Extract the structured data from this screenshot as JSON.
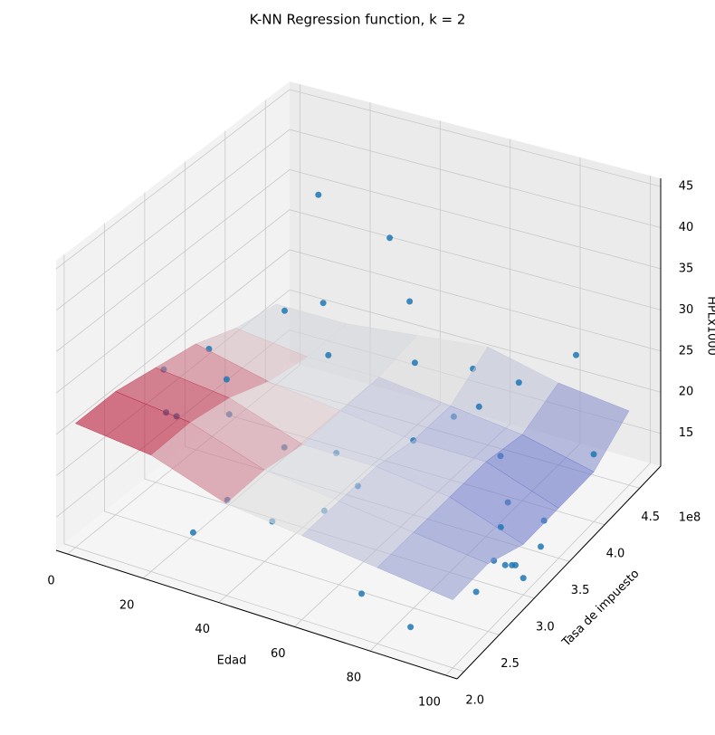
{
  "chart_data": {
    "type": "scatter3d",
    "title": "K-NN Regression function, k = 2",
    "xlabel": "Edad",
    "ylabel": "Tasa de impuesto",
    "zlabel": "HPLx1000",
    "y_offset_label": "1e8",
    "xlim": [
      -3,
      103
    ],
    "ylim": [
      1.9,
      4.8
    ],
    "zlim": [
      11,
      46
    ],
    "xticks": [
      0,
      20,
      40,
      60,
      80,
      100
    ],
    "yticks": [
      {
        "value": 2,
        "label": "2.0"
      },
      {
        "value": 2.5,
        "label": "2.5"
      },
      {
        "value": 3,
        "label": "3.0"
      },
      {
        "value": 3.5,
        "label": "3.5"
      },
      {
        "value": 4,
        "label": "4.0"
      },
      {
        "value": 4.5,
        "label": "4.5"
      }
    ],
    "zticks": [
      15,
      20,
      25,
      30,
      35,
      40,
      45
    ],
    "grid": true,
    "scatter": {
      "color": "#1f77b4",
      "x": [
        92,
        95,
        97,
        90,
        99,
        93,
        88,
        96,
        100,
        94,
        85,
        70,
        40,
        50,
        55,
        60,
        45,
        65,
        70,
        30,
        25,
        35,
        20,
        15,
        10,
        5,
        0,
        8,
        28,
        50,
        75,
        85,
        60,
        20,
        18,
        40,
        12,
        30,
        80,
        98
      ],
      "y": [
        3.0,
        3.1,
        2.9,
        3.2,
        3.3,
        2.7,
        3.4,
        3.5,
        3.0,
        3.2,
        2.2,
        2.3,
        2.6,
        2.8,
        3.0,
        3.5,
        3.2,
        3.8,
        3.9,
        2.5,
        2.3,
        3.0,
        3.0,
        3.2,
        2.8,
        2.9,
        3.1,
        3.3,
        3.9,
        4.0,
        4.2,
        4.5,
        4.3,
        4.2,
        3.8,
        4.4,
        4.5,
        4.6,
        3.7,
        4.1
      ],
      "z": [
        14,
        13,
        15,
        16,
        14,
        13,
        17,
        15,
        13,
        12,
        12,
        13,
        15,
        16,
        18,
        20,
        19,
        21,
        22,
        17,
        14,
        20,
        22,
        24,
        22,
        21,
        24,
        26,
        23,
        24,
        23,
        25,
        22,
        26,
        28,
        27,
        36,
        32,
        19,
        18
      ]
    },
    "surface": {
      "colormap": "coolwarm",
      "x": [
        0,
        20,
        40,
        60,
        80,
        100
      ],
      "y": [
        2.0,
        2.5,
        3.0,
        3.5,
        4.0,
        4.5
      ],
      "z": [
        [
          26,
          25,
          22,
          21,
          20,
          19
        ],
        [
          26,
          25,
          22,
          21,
          20,
          19
        ],
        [
          25,
          24,
          21,
          21,
          20,
          17
        ],
        [
          24,
          22,
          21,
          20,
          20,
          17
        ],
        [
          22,
          21,
          21,
          20,
          19,
          17
        ],
        [
          21,
          21,
          22,
          23,
          21,
          20
        ]
      ]
    }
  }
}
